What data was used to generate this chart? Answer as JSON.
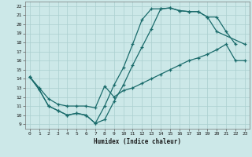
{
  "xlabel": "Humidex (Indice chaleur)",
  "bg_color": "#cce8e8",
  "grid_color": "#aacfcf",
  "line_color": "#1a6b6b",
  "xlim": [
    -0.5,
    23.5
  ],
  "ylim": [
    8.5,
    22.5
  ],
  "xticks": [
    0,
    1,
    2,
    3,
    4,
    5,
    6,
    7,
    8,
    9,
    10,
    11,
    12,
    13,
    14,
    15,
    16,
    17,
    18,
    19,
    20,
    21,
    22,
    23
  ],
  "yticks": [
    9,
    10,
    11,
    12,
    13,
    14,
    15,
    16,
    17,
    18,
    19,
    20,
    21,
    22
  ],
  "line1_x": [
    0,
    1,
    2,
    3,
    4,
    5,
    6,
    7,
    8,
    9,
    10,
    11,
    12,
    13,
    14,
    15,
    16,
    17,
    18,
    19,
    20,
    23
  ],
  "line1_y": [
    14.2,
    12.8,
    11.0,
    10.5,
    10.0,
    10.2,
    10.0,
    9.1,
    11.0,
    13.3,
    15.2,
    17.8,
    20.5,
    21.7,
    21.7,
    21.8,
    21.5,
    21.4,
    21.4,
    20.8,
    19.2,
    17.8
  ],
  "line2_x": [
    0,
    1,
    2,
    3,
    4,
    5,
    6,
    7,
    8,
    9,
    10,
    11,
    12,
    13,
    14,
    15,
    16,
    17,
    18,
    19,
    20,
    21,
    22
  ],
  "line2_y": [
    14.2,
    12.8,
    11.0,
    10.5,
    10.0,
    10.2,
    10.0,
    9.1,
    9.5,
    11.5,
    13.3,
    15.5,
    17.5,
    19.5,
    21.7,
    21.8,
    21.5,
    21.4,
    21.4,
    20.8,
    20.8,
    19.2,
    17.8
  ],
  "line3_x": [
    0,
    1,
    2,
    3,
    4,
    5,
    6,
    7,
    8,
    9,
    10,
    11,
    12,
    13,
    14,
    15,
    16,
    17,
    18,
    19,
    20,
    21,
    22,
    23
  ],
  "line3_y": [
    14.2,
    13.0,
    11.8,
    11.2,
    11.0,
    11.0,
    11.0,
    10.8,
    13.2,
    12.0,
    12.7,
    13.0,
    13.5,
    14.0,
    14.5,
    15.0,
    15.5,
    16.0,
    16.3,
    16.7,
    17.2,
    17.8,
    16.0,
    16.0
  ]
}
